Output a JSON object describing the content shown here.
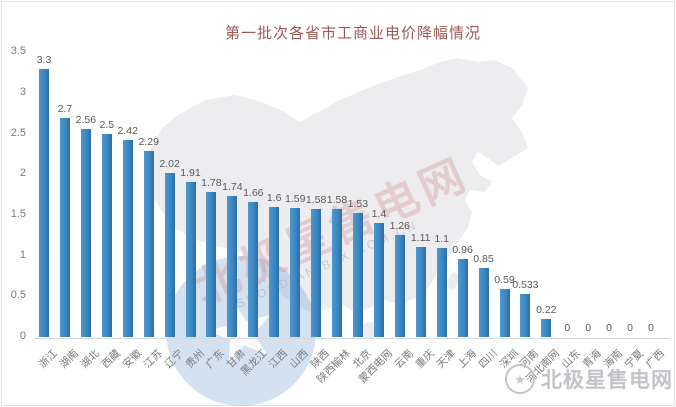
{
  "title": "第一批次各省市工商业电价降幅情况",
  "watermark": {
    "center_text": "北极星售电网",
    "center_subtext": "SHOUDIAN.BJX.COM.CN",
    "star_icon": "★"
  },
  "brand_logo": {
    "text": "北极星售电网",
    "star_icon": "★"
  },
  "chart_data": {
    "type": "bar",
    "title": "第一批次各省市工商业电价降幅情况",
    "categories": [
      "浙江",
      "湖南",
      "湖北",
      "西藏",
      "安徽",
      "江苏",
      "辽宁",
      "贵州",
      "广东",
      "甘肃",
      "黑龙江",
      "江西",
      "山西",
      "陕西",
      "陕西榆林",
      "北京",
      "蒙西电网",
      "云南",
      "重庆",
      "天津",
      "上海",
      "四川",
      "深圳",
      "河南",
      "河北南网",
      "山东",
      "青海",
      "海南",
      "宁夏",
      "广西"
    ],
    "values": [
      3.3,
      2.7,
      2.56,
      2.5,
      2.42,
      2.29,
      2.02,
      1.91,
      1.78,
      1.74,
      1.66,
      1.6,
      1.59,
      1.58,
      1.58,
      1.53,
      1.4,
      1.26,
      1.11,
      1.1,
      0.96,
      0.85,
      0.59,
      0.533,
      0.22,
      0,
      0,
      0,
      0,
      0
    ],
    "xlabel": "",
    "ylabel": "",
    "ylim": [
      0,
      3.5
    ],
    "yticks": [
      0,
      0.5,
      1,
      1.5,
      2,
      2.5,
      3,
      3.5
    ],
    "grid": false,
    "legend": false,
    "bar_color": "#3a87c2",
    "label_color": "#595959"
  }
}
